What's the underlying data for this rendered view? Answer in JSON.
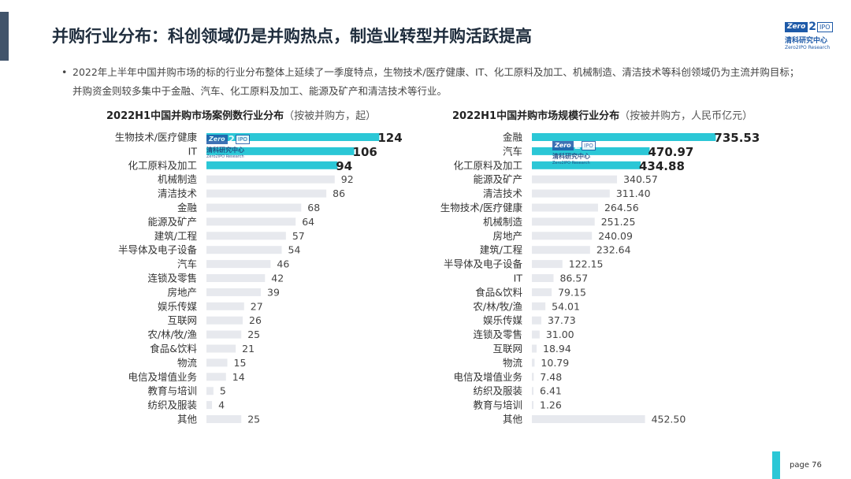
{
  "header": {
    "title": "并购行业分布：科创领域仍是并购热点，制造业转型并购活跃提高",
    "logo": {
      "brand": "Zero",
      "digit": "2",
      "ipo": "IPO",
      "cn": "清科研究中心",
      "en": "Zero2IPO Research"
    }
  },
  "bullet": {
    "dot": "•",
    "text": "2022年上半年中国并购市场的标的行业分布整体上延续了一季度特点，生物技术/医疗健康、IT、化工原料及加工、机械制造、清洁技术等科创领域仍为主流并购目标；并购资金则较多集中于金融、汽车、化工原料及加工、能源及矿产和清洁技术等行业。"
  },
  "watermark": {
    "brand": "Zero",
    "digit": "2",
    "ipo": "IPO",
    "cn": "清科研究中心",
    "en": "Zero2IPO Research"
  },
  "colors": {
    "highlight": "#2bc7d6",
    "bar": "#e7e9ee",
    "accent": "#41546b"
  },
  "chart_data": [
    {
      "type": "bar",
      "orientation": "horizontal",
      "title": "2022H1中国并购市场案例数行业分布",
      "unit_note": "（按被并购方，起）",
      "categories": [
        "生物技术/医疗健康",
        "IT",
        "化工原料及加工",
        "机械制造",
        "清洁技术",
        "金融",
        "能源及矿产",
        "建筑/工程",
        "半导体及电子设备",
        "汽车",
        "连锁及零售",
        "房地产",
        "娱乐传媒",
        "互联网",
        "农/林/牧/渔",
        "食品&饮料",
        "物流",
        "电信及增值业务",
        "教育与培训",
        "纺织及服装",
        "其他"
      ],
      "values": [
        124,
        106,
        94,
        92,
        86,
        68,
        64,
        57,
        54,
        46,
        42,
        39,
        27,
        26,
        25,
        21,
        15,
        14,
        5,
        4,
        25
      ],
      "labels": [
        "124",
        "106",
        "94",
        "92",
        "86",
        "68",
        "64",
        "57",
        "54",
        "46",
        "42",
        "39",
        "27",
        "26",
        "25",
        "21",
        "15",
        "14",
        "5",
        "4",
        "25"
      ],
      "highlight_count": 3,
      "xlim": [
        0,
        130
      ]
    },
    {
      "type": "bar",
      "orientation": "horizontal",
      "title": "2022H1中国并购市场规模行业分布",
      "unit_note": "（按被并购方，人民币亿元）",
      "categories": [
        "金融",
        "汽车",
        "化工原料及加工",
        "能源及矿产",
        "清洁技术",
        "生物技术/医疗健康",
        "机械制造",
        "房地产",
        "建筑/工程",
        "半导体及电子设备",
        "IT",
        "食品&饮料",
        "农/林/牧/渔",
        "娱乐传媒",
        "连锁及零售",
        "互联网",
        "物流",
        "电信及增值业务",
        "纺织及服装",
        "教育与培训",
        "其他"
      ],
      "values": [
        735.53,
        470.97,
        434.88,
        340.57,
        311.4,
        264.56,
        251.25,
        240.09,
        232.64,
        122.15,
        86.57,
        79.15,
        54.01,
        37.73,
        31.0,
        18.94,
        10.79,
        7.48,
        6.41,
        1.26,
        452.5
      ],
      "labels": [
        "735.53",
        "470.97",
        "434.88",
        "340.57",
        "311.40",
        "264.56",
        "251.25",
        "240.09",
        "232.64",
        "122.15",
        "86.57",
        "79.15",
        "54.01",
        "37.73",
        "31.00",
        "18.94",
        "10.79",
        "7.48",
        "6.41",
        "1.26",
        "452.50"
      ],
      "highlight_count": 3,
      "xlim": [
        0,
        750
      ]
    }
  ],
  "footer": {
    "page_label": "page  76"
  }
}
